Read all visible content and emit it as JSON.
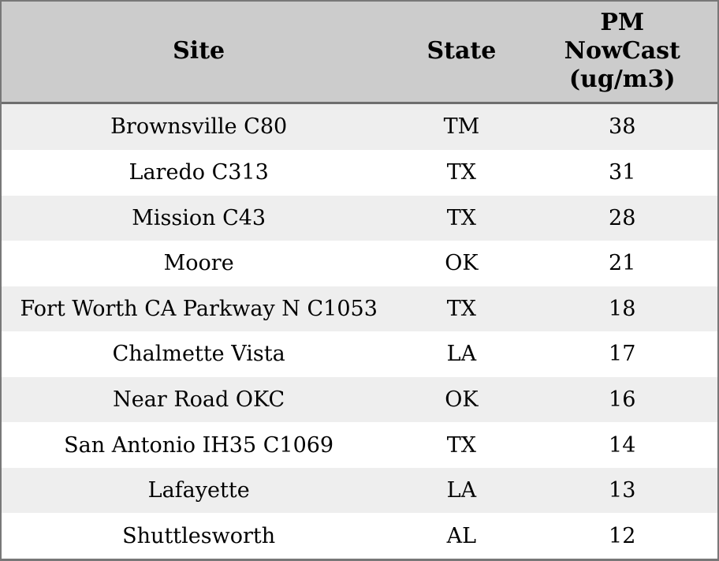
{
  "table": {
    "columns": [
      {
        "key": "site",
        "label": "Site"
      },
      {
        "key": "state",
        "label": "State"
      },
      {
        "key": "pm",
        "label": "PM\nNowCast\n(ug/m3)"
      }
    ],
    "rows": [
      {
        "site": "Brownsville C80",
        "state": "TM",
        "pm": "38"
      },
      {
        "site": "Laredo C313",
        "state": "TX",
        "pm": "31"
      },
      {
        "site": "Mission C43",
        "state": "TX",
        "pm": "28"
      },
      {
        "site": "Moore",
        "state": "OK",
        "pm": "21"
      },
      {
        "site": "Fort Worth CA Parkway N C1053",
        "state": "TX",
        "pm": "18"
      },
      {
        "site": "Chalmette Vista",
        "state": "LA",
        "pm": "17"
      },
      {
        "site": "Near Road OKC",
        "state": "OK",
        "pm": "16"
      },
      {
        "site": "San Antonio IH35 C1069",
        "state": "TX",
        "pm": "14"
      },
      {
        "site": "Lafayette",
        "state": "LA",
        "pm": "13"
      },
      {
        "site": "Shuttlesworth",
        "state": "AL",
        "pm": "12"
      }
    ]
  },
  "chart_data": {
    "type": "table",
    "title": "",
    "columns": [
      "Site",
      "State",
      "PM NowCast (ug/m3)"
    ],
    "rows": [
      [
        "Brownsville C80",
        "TM",
        38
      ],
      [
        "Laredo C313",
        "TX",
        31
      ],
      [
        "Mission C43",
        "TX",
        28
      ],
      [
        "Moore",
        "OK",
        21
      ],
      [
        "Fort Worth CA Parkway N C1053",
        "TX",
        18
      ],
      [
        "Chalmette Vista",
        "LA",
        17
      ],
      [
        "Near Road OKC",
        "OK",
        16
      ],
      [
        "San Antonio IH35 C1069",
        "TX",
        14
      ],
      [
        "Lafayette",
        "LA",
        13
      ],
      [
        "Shuttlesworth",
        "AL",
        12
      ]
    ],
    "layout_hints": {
      "striped_rows": true,
      "stripe_starts_on_first_row": true,
      "header_multiline_third_column": true,
      "all_text_centered": true
    }
  },
  "colors": {
    "header_bg": "#cccccc",
    "stripe_bg": "#eeeeee",
    "row_bg": "#ffffff",
    "border": "#787878",
    "border_dark": "#6e6e6e",
    "text": "#000000"
  }
}
